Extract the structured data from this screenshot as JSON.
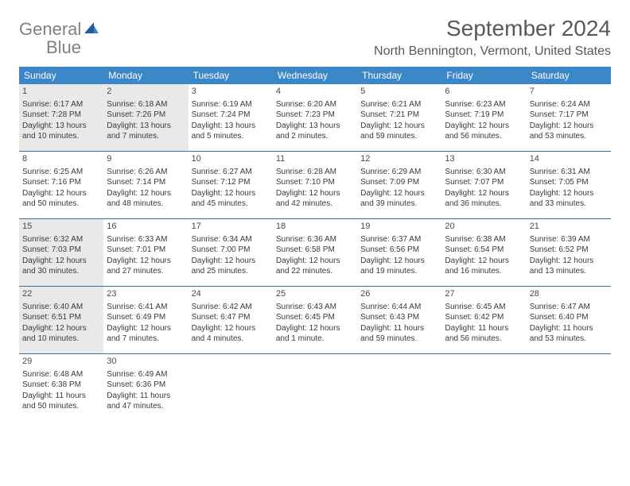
{
  "logo": {
    "text1": "General",
    "text2": "Blue"
  },
  "title": "September 2024",
  "location": "North Bennington, Vermont, United States",
  "colors": {
    "header_bg": "#3b87c8",
    "header_text": "#ffffff",
    "border": "#3b6fa0",
    "shade_bg": "#e9e9e9",
    "title_color": "#595959",
    "body_text": "#3a3a3a",
    "logo_gray": "#808080",
    "logo_blue": "#3b7fb8"
  },
  "dow": [
    "Sunday",
    "Monday",
    "Tuesday",
    "Wednesday",
    "Thursday",
    "Friday",
    "Saturday"
  ],
  "weeks": [
    [
      {
        "n": "1",
        "shade": true,
        "sr": "Sunrise: 6:17 AM",
        "ss": "Sunset: 7:28 PM",
        "d1": "Daylight: 13 hours",
        "d2": "and 10 minutes."
      },
      {
        "n": "2",
        "shade": true,
        "sr": "Sunrise: 6:18 AM",
        "ss": "Sunset: 7:26 PM",
        "d1": "Daylight: 13 hours",
        "d2": "and 7 minutes."
      },
      {
        "n": "3",
        "shade": false,
        "sr": "Sunrise: 6:19 AM",
        "ss": "Sunset: 7:24 PM",
        "d1": "Daylight: 13 hours",
        "d2": "and 5 minutes."
      },
      {
        "n": "4",
        "shade": false,
        "sr": "Sunrise: 6:20 AM",
        "ss": "Sunset: 7:23 PM",
        "d1": "Daylight: 13 hours",
        "d2": "and 2 minutes."
      },
      {
        "n": "5",
        "shade": false,
        "sr": "Sunrise: 6:21 AM",
        "ss": "Sunset: 7:21 PM",
        "d1": "Daylight: 12 hours",
        "d2": "and 59 minutes."
      },
      {
        "n": "6",
        "shade": false,
        "sr": "Sunrise: 6:23 AM",
        "ss": "Sunset: 7:19 PM",
        "d1": "Daylight: 12 hours",
        "d2": "and 56 minutes."
      },
      {
        "n": "7",
        "shade": false,
        "sr": "Sunrise: 6:24 AM",
        "ss": "Sunset: 7:17 PM",
        "d1": "Daylight: 12 hours",
        "d2": "and 53 minutes."
      }
    ],
    [
      {
        "n": "8",
        "shade": false,
        "sr": "Sunrise: 6:25 AM",
        "ss": "Sunset: 7:16 PM",
        "d1": "Daylight: 12 hours",
        "d2": "and 50 minutes."
      },
      {
        "n": "9",
        "shade": false,
        "sr": "Sunrise: 6:26 AM",
        "ss": "Sunset: 7:14 PM",
        "d1": "Daylight: 12 hours",
        "d2": "and 48 minutes."
      },
      {
        "n": "10",
        "shade": false,
        "sr": "Sunrise: 6:27 AM",
        "ss": "Sunset: 7:12 PM",
        "d1": "Daylight: 12 hours",
        "d2": "and 45 minutes."
      },
      {
        "n": "11",
        "shade": false,
        "sr": "Sunrise: 6:28 AM",
        "ss": "Sunset: 7:10 PM",
        "d1": "Daylight: 12 hours",
        "d2": "and 42 minutes."
      },
      {
        "n": "12",
        "shade": false,
        "sr": "Sunrise: 6:29 AM",
        "ss": "Sunset: 7:09 PM",
        "d1": "Daylight: 12 hours",
        "d2": "and 39 minutes."
      },
      {
        "n": "13",
        "shade": false,
        "sr": "Sunrise: 6:30 AM",
        "ss": "Sunset: 7:07 PM",
        "d1": "Daylight: 12 hours",
        "d2": "and 36 minutes."
      },
      {
        "n": "14",
        "shade": false,
        "sr": "Sunrise: 6:31 AM",
        "ss": "Sunset: 7:05 PM",
        "d1": "Daylight: 12 hours",
        "d2": "and 33 minutes."
      }
    ],
    [
      {
        "n": "15",
        "shade": true,
        "sr": "Sunrise: 6:32 AM",
        "ss": "Sunset: 7:03 PM",
        "d1": "Daylight: 12 hours",
        "d2": "and 30 minutes."
      },
      {
        "n": "16",
        "shade": false,
        "sr": "Sunrise: 6:33 AM",
        "ss": "Sunset: 7:01 PM",
        "d1": "Daylight: 12 hours",
        "d2": "and 27 minutes."
      },
      {
        "n": "17",
        "shade": false,
        "sr": "Sunrise: 6:34 AM",
        "ss": "Sunset: 7:00 PM",
        "d1": "Daylight: 12 hours",
        "d2": "and 25 minutes."
      },
      {
        "n": "18",
        "shade": false,
        "sr": "Sunrise: 6:36 AM",
        "ss": "Sunset: 6:58 PM",
        "d1": "Daylight: 12 hours",
        "d2": "and 22 minutes."
      },
      {
        "n": "19",
        "shade": false,
        "sr": "Sunrise: 6:37 AM",
        "ss": "Sunset: 6:56 PM",
        "d1": "Daylight: 12 hours",
        "d2": "and 19 minutes."
      },
      {
        "n": "20",
        "shade": false,
        "sr": "Sunrise: 6:38 AM",
        "ss": "Sunset: 6:54 PM",
        "d1": "Daylight: 12 hours",
        "d2": "and 16 minutes."
      },
      {
        "n": "21",
        "shade": false,
        "sr": "Sunrise: 6:39 AM",
        "ss": "Sunset: 6:52 PM",
        "d1": "Daylight: 12 hours",
        "d2": "and 13 minutes."
      }
    ],
    [
      {
        "n": "22",
        "shade": true,
        "sr": "Sunrise: 6:40 AM",
        "ss": "Sunset: 6:51 PM",
        "d1": "Daylight: 12 hours",
        "d2": "and 10 minutes."
      },
      {
        "n": "23",
        "shade": false,
        "sr": "Sunrise: 6:41 AM",
        "ss": "Sunset: 6:49 PM",
        "d1": "Daylight: 12 hours",
        "d2": "and 7 minutes."
      },
      {
        "n": "24",
        "shade": false,
        "sr": "Sunrise: 6:42 AM",
        "ss": "Sunset: 6:47 PM",
        "d1": "Daylight: 12 hours",
        "d2": "and 4 minutes."
      },
      {
        "n": "25",
        "shade": false,
        "sr": "Sunrise: 6:43 AM",
        "ss": "Sunset: 6:45 PM",
        "d1": "Daylight: 12 hours",
        "d2": "and 1 minute."
      },
      {
        "n": "26",
        "shade": false,
        "sr": "Sunrise: 6:44 AM",
        "ss": "Sunset: 6:43 PM",
        "d1": "Daylight: 11 hours",
        "d2": "and 59 minutes."
      },
      {
        "n": "27",
        "shade": false,
        "sr": "Sunrise: 6:45 AM",
        "ss": "Sunset: 6:42 PM",
        "d1": "Daylight: 11 hours",
        "d2": "and 56 minutes."
      },
      {
        "n": "28",
        "shade": false,
        "sr": "Sunrise: 6:47 AM",
        "ss": "Sunset: 6:40 PM",
        "d1": "Daylight: 11 hours",
        "d2": "and 53 minutes."
      }
    ],
    [
      {
        "n": "29",
        "shade": false,
        "sr": "Sunrise: 6:48 AM",
        "ss": "Sunset: 6:38 PM",
        "d1": "Daylight: 11 hours",
        "d2": "and 50 minutes."
      },
      {
        "n": "30",
        "shade": false,
        "sr": "Sunrise: 6:49 AM",
        "ss": "Sunset: 6:36 PM",
        "d1": "Daylight: 11 hours",
        "d2": "and 47 minutes."
      },
      {
        "n": "",
        "shade": false
      },
      {
        "n": "",
        "shade": false
      },
      {
        "n": "",
        "shade": false
      },
      {
        "n": "",
        "shade": false
      },
      {
        "n": "",
        "shade": false
      }
    ]
  ]
}
